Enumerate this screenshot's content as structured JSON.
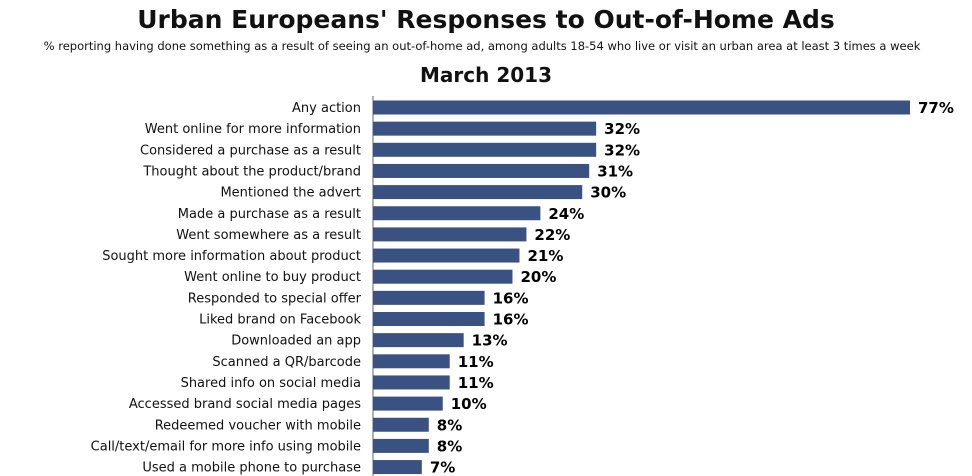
{
  "chart_data": {
    "type": "bar",
    "orientation": "horizontal",
    "title": "Urban Europeans' Responses to Out-of-Home Ads",
    "subtitle": "% reporting having done something as a result of seeing an out-of-home ad, among adults 18-54 who live or visit an urban area at least 3 times a week",
    "period": "March 2013",
    "xlabel": "",
    "ylabel": "",
    "xlim": [
      0,
      77
    ],
    "grid": false,
    "legend": "none",
    "bar_color": "#3a5282",
    "categories": [
      "Any action",
      "Went online for more information",
      "Considered a purchase as a result",
      "Thought about the product/brand",
      "Mentioned the advert",
      "Made a purchase as a result",
      "Went somewhere as a result",
      "Sought more information about product",
      "Went online to buy product",
      "Responded to special offer",
      "Liked brand on Facebook",
      "Downloaded an app",
      "Scanned a QR/barcode",
      "Shared info on social media",
      "Accessed brand social media pages",
      "Redeemed voucher with mobile",
      "Call/text/email for more info using mobile",
      "Used a mobile phone to purchase"
    ],
    "values": [
      77,
      32,
      32,
      31,
      30,
      24,
      22,
      21,
      20,
      16,
      16,
      13,
      11,
      11,
      10,
      8,
      8,
      7
    ],
    "value_labels": [
      "77%",
      "32%",
      "32%",
      "31%",
      "30%",
      "24%",
      "22%",
      "21%",
      "20%",
      "16%",
      "16%",
      "13%",
      "11%",
      "11%",
      "10%",
      "8%",
      "8%",
      "7%"
    ]
  }
}
